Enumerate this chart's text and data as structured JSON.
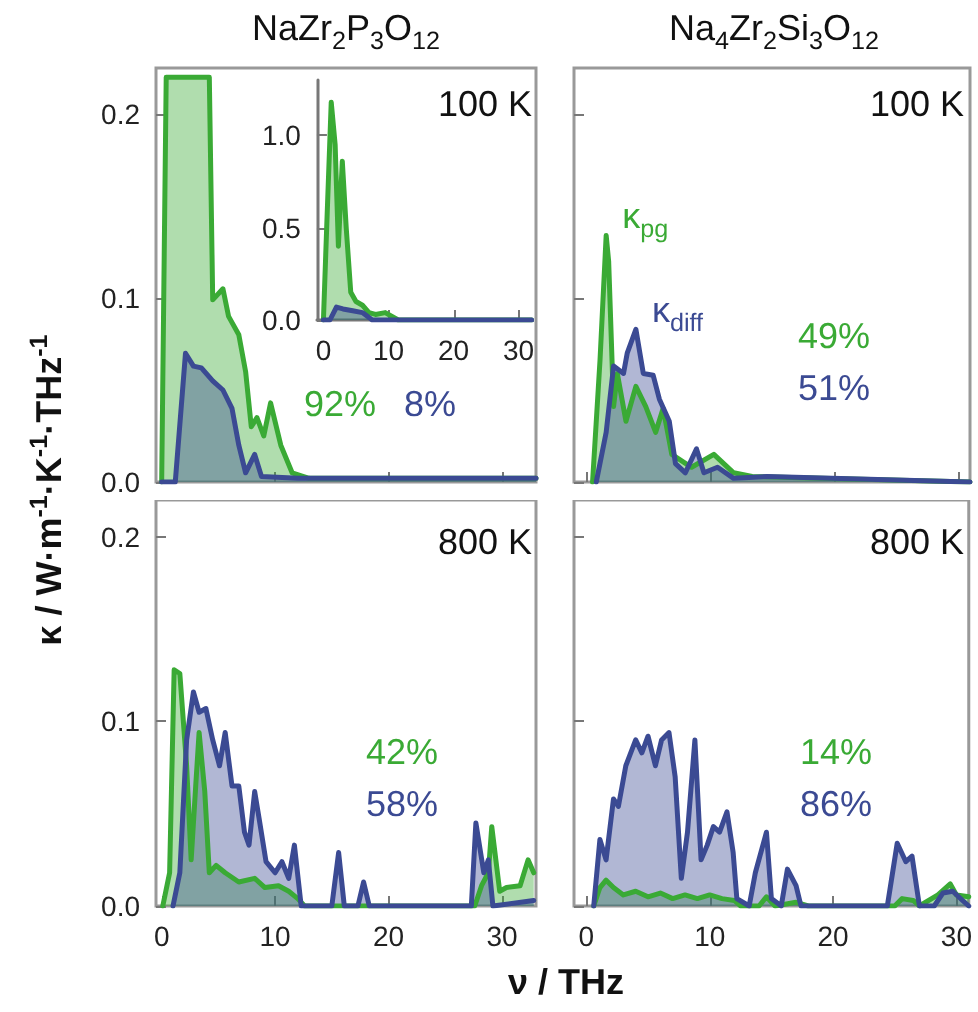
{
  "chart_data": [
    {
      "type": "area",
      "title": "NaZr$_{2}$P$_{3}$O$_{12}$",
      "annotations": [
        "100 K",
        "92%",
        "8%"
      ],
      "xlim": [
        -0.5,
        33
      ],
      "xticks": [
        0,
        10,
        20,
        30
      ],
      "ylim": [
        0,
        0.225
      ],
      "yticks": [
        {
          "value": 0,
          "label": "0.0"
        },
        {
          "value": 0.1,
          "label": "0.1"
        },
        {
          "value": 0.2,
          "label": "0.2"
        }
      ],
      "tick_labels": "y",
      "series": [
        {
          "color": "#3aaa35",
          "x": [
            0,
            0.4,
            4.2,
            4.5,
            5.4,
            5.9,
            6.8,
            7.4,
            7.9,
            8.4,
            9.0,
            9.6,
            10.5,
            11.5,
            13,
            20,
            33
          ],
          "values": [
            0,
            0.22,
            0.22,
            0.099,
            0.105,
            0.09,
            0.08,
            0.06,
            0.03,
            0.035,
            0.025,
            0.043,
            0.02,
            0.005,
            0.002,
            0.002,
            0.002
          ]
        },
        {
          "color": "#3b4a93",
          "x": [
            0,
            1.2,
            2.1,
            2.8,
            3.5,
            4.5,
            5.4,
            6.2,
            6.8,
            7.4,
            8.2,
            8.8,
            12,
            33
          ],
          "values": [
            0,
            0,
            0.07,
            0.063,
            0.062,
            0.055,
            0.05,
            0.04,
            0.02,
            0.005,
            0.015,
            0.003,
            0.002,
            0.002
          ]
        }
      ]
    },
    {
      "type": "area",
      "xlim": [
        -1,
        32
      ],
      "xticks": [
        0,
        10,
        20,
        30
      ],
      "ylim": [
        0,
        1.3
      ],
      "yticks": [
        {
          "value": 0,
          "label": "0.0"
        },
        {
          "value": 0.5,
          "label": "0.5"
        },
        {
          "value": 1,
          "label": "1.0"
        }
      ],
      "series": [
        {
          "color": "#3aaa35",
          "x": [
            0,
            0.5,
            1.2,
            1.8,
            2.3,
            2.9,
            3.5,
            4.2,
            5,
            6,
            7,
            8,
            9.5,
            11.5,
            15,
            32
          ],
          "values": [
            0,
            0.5,
            1.18,
            0.95,
            0.4,
            0.86,
            0.5,
            0.15,
            0.1,
            0.08,
            0.04,
            0.03,
            0.04,
            0,
            0,
            0
          ]
        },
        {
          "color": "#3b4a93",
          "x": [
            0,
            1,
            2,
            3,
            4.5,
            6,
            7.5,
            32
          ],
          "values": [
            0,
            0,
            0.07,
            0.06,
            0.05,
            0.04,
            0,
            0
          ]
        }
      ]
    },
    {
      "type": "area",
      "title": "Na$_{4}$Zr$_{2}$Si$_{3}$O$_{12}$",
      "annotations": [
        "100 K",
        "49%",
        "51%"
      ],
      "xlim": [
        -1,
        31
      ],
      "xticks": [
        0,
        10,
        20,
        30
      ],
      "ylim": [
        0,
        0.225
      ],
      "yticks": [
        0,
        0.1,
        0.2
      ],
      "tick_labels": false,
      "series": [
        {
          "name": "κ$_{pg}$",
          "color": "#3aaa35",
          "x": [
            0.5,
            1.1,
            1.6,
            1.8,
            2.2,
            2.5,
            3.2,
            4.0,
            4.8,
            5.6,
            6.2,
            6.9,
            8.5,
            10.3,
            11.9,
            13.4,
            31
          ],
          "values": [
            0,
            0.066,
            0.134,
            0.12,
            0.041,
            0.059,
            0.033,
            0.052,
            0.041,
            0.027,
            0.04,
            0.015,
            0.008,
            0.015,
            0.005,
            0.003,
            0
          ]
        },
        {
          "name": "κ$_{diff}$",
          "color": "#3b4a93",
          "x": [
            0.8,
            1.6,
            2.2,
            3.0,
            3.3,
            4.0,
            4.6,
            5.4,
            5.9,
            6.7,
            7.2,
            8.0,
            8.9,
            9.5,
            10.6,
            11.9,
            14.6,
            31
          ],
          "values": [
            0,
            0.027,
            0.063,
            0.059,
            0.07,
            0.083,
            0.059,
            0.058,
            0.045,
            0.033,
            0.01,
            0.005,
            0.018,
            0.005,
            0.008,
            0.002,
            0.003,
            0
          ]
        }
      ]
    },
    {
      "type": "area",
      "xlabel": "ν / THz",
      "ylabel": "κ / W·m$^{-1}$·K$^{-1}$·THz$^{-1}$",
      "annotations": [
        "800 K",
        "42%",
        "58%"
      ],
      "xlim": [
        -0.5,
        33
      ],
      "xticks": [
        0,
        10,
        20,
        30
      ],
      "ylim": [
        0,
        0.22
      ],
      "yticks": [
        {
          "value": 0,
          "label": "0.0"
        },
        {
          "value": 0.1,
          "label": "0.1"
        },
        {
          "value": 0.2,
          "label": "0.2"
        }
      ],
      "series": [
        {
          "color": "#3aaa35",
          "x": [
            0.1,
            0.7,
            1.1,
            1.6,
            2.2,
            2.6,
            3.0,
            3.3,
            3.8,
            4.2,
            4.8,
            5.6,
            6.8,
            8.2,
            9.1,
            10.3,
            11.2,
            12.0,
            12.6,
            27.6,
            28.2,
            28.8,
            29.1,
            29.8,
            30.4,
            31.6,
            32.3,
            32.8
          ],
          "values": [
            0,
            0.018,
            0.128,
            0.126,
            0.076,
            0.025,
            0.065,
            0.094,
            0.062,
            0.018,
            0.022,
            0.018,
            0.013,
            0.015,
            0.01,
            0.011,
            0.008,
            0.004,
            0,
            0,
            0.011,
            0.018,
            0.043,
            0.008,
            0.01,
            0.011,
            0.025,
            0.018
          ]
        },
        {
          "color": "#3b4a93",
          "x": [
            1.0,
            1.6,
            2.2,
            2.8,
            3.3,
            3.9,
            4.5,
            5.1,
            5.6,
            6.2,
            6.8,
            7.3,
            7.7,
            8.2,
            8.6,
            9.2,
            10.0,
            10.6,
            11.2,
            11.7,
            12.3,
            15.0,
            15.6,
            16.1,
            17.3,
            17.8,
            18.3,
            27.3,
            27.7,
            28.4,
            28.8,
            29.2,
            32.8
          ],
          "values": [
            0,
            0.018,
            0.09,
            0.116,
            0.105,
            0.107,
            0.09,
            0.076,
            0.094,
            0.065,
            0.065,
            0.04,
            0.033,
            0.062,
            0.047,
            0.024,
            0.018,
            0.024,
            0.015,
            0.033,
            0,
            0,
            0.029,
            0,
            0,
            0.013,
            0,
            0,
            0.045,
            0.018,
            0.025,
            0,
            0.003
          ]
        }
      ]
    },
    {
      "type": "area",
      "annotations": [
        "800 K",
        "14%",
        "86%"
      ],
      "xlim": [
        -1,
        31
      ],
      "xticks": [
        0,
        10,
        20,
        30
      ],
      "ylim": [
        0,
        0.22
      ],
      "yticks": [
        0,
        0.1,
        0.2
      ],
      "tick_labels": "x",
      "series": [
        {
          "color": "#3aaa35",
          "x": [
            0.6,
            1.1,
            1.6,
            2.2,
            3.0,
            4.0,
            5.0,
            6.0,
            7.0,
            8.0,
            9.0,
            10,
            11,
            12,
            12.5,
            14,
            14.6,
            15.3,
            17,
            18,
            25,
            25.6,
            26.5,
            27,
            28.5,
            29.5,
            30,
            31
          ],
          "values": [
            0,
            0.01,
            0.014,
            0.01,
            0.006,
            0.008,
            0.005,
            0.007,
            0.004,
            0.006,
            0.004,
            0.006,
            0.004,
            0.003,
            0,
            0,
            0.005,
            0,
            0.002,
            0,
            0,
            0.004,
            0.003,
            0,
            0.006,
            0.012,
            0.006,
            0.005
          ]
        },
        {
          "color": "#3b4a93",
          "x": [
            0.6,
            1.1,
            1.6,
            2.2,
            2.6,
            3.2,
            4.0,
            4.5,
            5.0,
            5.6,
            6.1,
            6.7,
            7.2,
            7.7,
            8.2,
            8.8,
            9.3,
            9.8,
            10.3,
            10.8,
            11.4,
            11.9,
            12.2,
            13.2,
            13.7,
            14.6,
            15.0,
            15.8,
            16.3,
            17.0,
            17.4,
            24.4,
            25.2,
            25.9,
            26.4,
            27.0,
            28.2,
            28.9,
            29.7,
            30.5,
            31
          ],
          "values": [
            0,
            0.036,
            0.025,
            0.058,
            0.054,
            0.076,
            0.09,
            0.083,
            0.092,
            0.076,
            0.09,
            0.094,
            0.07,
            0.015,
            0.04,
            0.09,
            0.025,
            0.033,
            0.043,
            0.04,
            0.051,
            0.029,
            0.004,
            0,
            0.018,
            0.04,
            0.004,
            0,
            0.02,
            0.011,
            0,
            0,
            0.034,
            0.024,
            0.027,
            0,
            0,
            0.007,
            0.008,
            0.003,
            0
          ]
        }
      ]
    }
  ]
}
